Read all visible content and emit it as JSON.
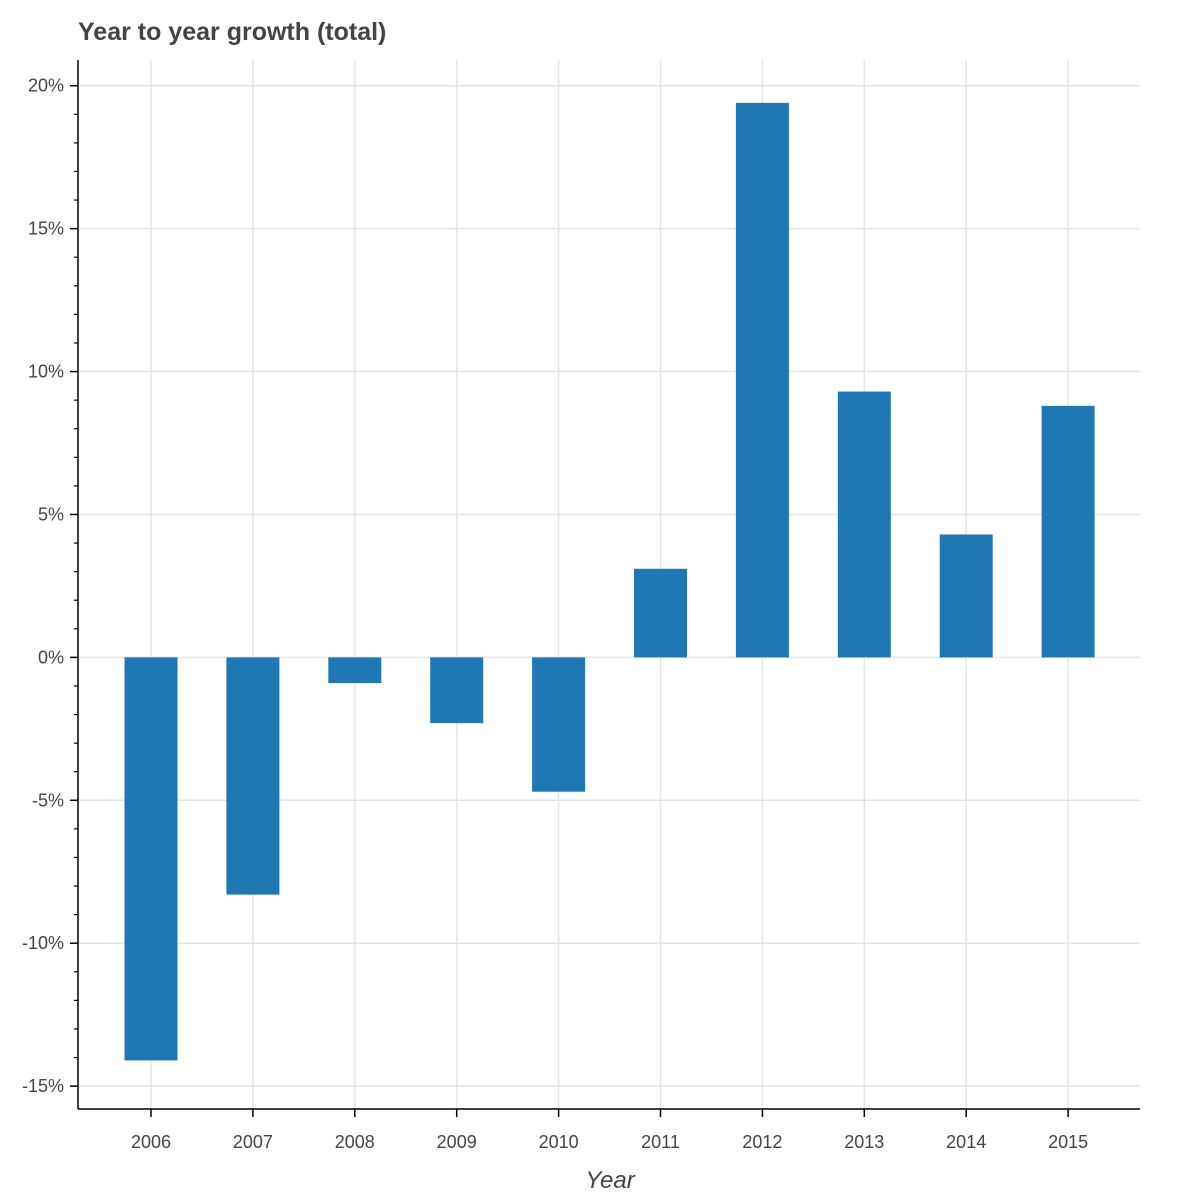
{
  "chart_data": {
    "type": "bar",
    "title": "Year to year growth (total)",
    "xlabel": "Year",
    "ylabel": "",
    "categories": [
      "2006",
      "2007",
      "2008",
      "2009",
      "2010",
      "2011",
      "2012",
      "2013",
      "2014",
      "2015"
    ],
    "values": [
      -14.1,
      -8.3,
      -0.9,
      -2.3,
      -4.7,
      3.1,
      19.4,
      9.3,
      4.3,
      8.8
    ],
    "ylim": [
      -15.8,
      20.9
    ],
    "yticks": [
      -15,
      -10,
      -5,
      0,
      5,
      10,
      15,
      20
    ],
    "ytick_labels": [
      "-15%",
      "-10%",
      "-5%",
      "0%",
      "5%",
      "10%",
      "15%",
      "20%"
    ],
    "grid": true,
    "bar_color": "#1f77b4",
    "grid_color": "#e5e5e5",
    "axis_color": "#000000"
  }
}
